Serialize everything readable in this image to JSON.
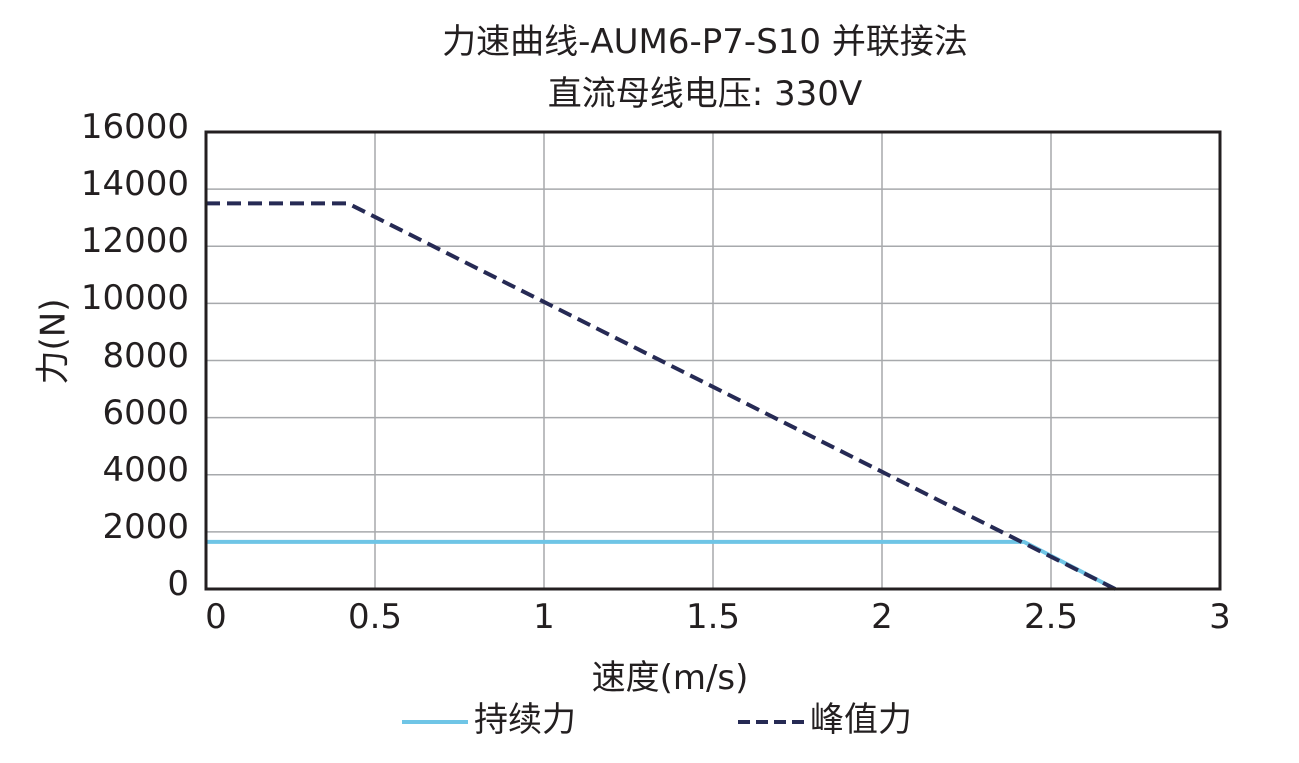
{
  "chart_data": {
    "type": "line",
    "title": "力速曲线-AUM6-P7-S10 并联接法",
    "subtitle": "直流母线电压: 330V",
    "xlabel": "速度(m/s)",
    "ylabel": "力(N)",
    "xlim": [
      0,
      3
    ],
    "ylim": [
      0,
      16000
    ],
    "x_ticks": [
      "0",
      "0.5",
      "1",
      "1.5",
      "2",
      "2.5",
      "3"
    ],
    "y_ticks": [
      "0",
      "2000",
      "4000",
      "6000",
      "8000",
      "10000",
      "12000",
      "14000",
      "16000"
    ],
    "grid": true,
    "legend_position": "bottom",
    "series": [
      {
        "name": "持续力",
        "style": "solid",
        "color": "#6fc5e6",
        "x": [
          0,
          2.42,
          2.69
        ],
        "y": [
          1650,
          1650,
          0
        ]
      },
      {
        "name": "峰值力",
        "style": "dashed",
        "color": "#262a54",
        "x": [
          0,
          0.42,
          2.69
        ],
        "y": [
          13500,
          13500,
          0
        ]
      }
    ]
  },
  "legend": {
    "continuous": "持续力",
    "peak": "峰值力"
  }
}
